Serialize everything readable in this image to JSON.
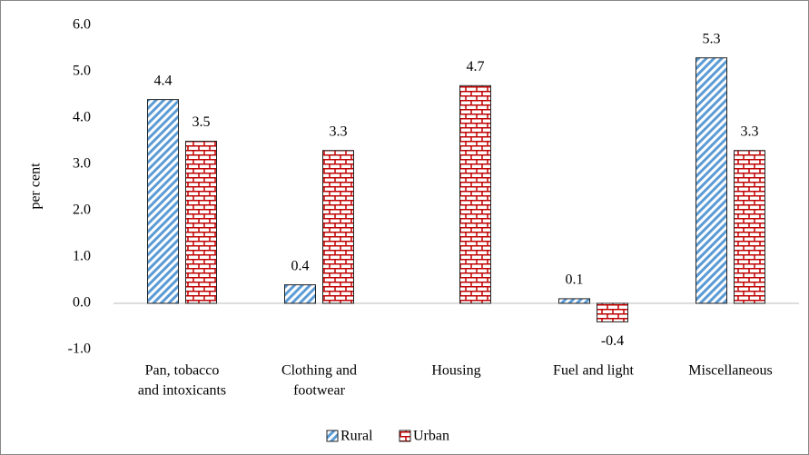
{
  "chart_data": {
    "type": "bar",
    "ylabel": "per cent",
    "categories": [
      [
        "Pan, tobacco",
        "and intoxicants"
      ],
      [
        "Clothing and",
        "footwear"
      ],
      [
        "Housing"
      ],
      [
        "Fuel and light"
      ],
      [
        "Miscellaneous"
      ]
    ],
    "series": [
      {
        "name": "Rural",
        "color": "#5b9bd5",
        "values": [
          4.4,
          0.4,
          null,
          0.1,
          5.3
        ]
      },
      {
        "name": "Urban",
        "color": "#c00000",
        "values": [
          3.5,
          3.3,
          4.7,
          -0.4,
          3.3
        ]
      }
    ],
    "ylim": [
      -1,
      6
    ],
    "yticks": [
      {
        "value": -1,
        "label": "-1.0"
      },
      {
        "value": 0,
        "label": "0.0"
      },
      {
        "value": 1,
        "label": "1.0"
      },
      {
        "value": 2,
        "label": "2.0"
      },
      {
        "value": 3,
        "label": "3.0"
      },
      {
        "value": 4,
        "label": "4.0"
      },
      {
        "value": 5,
        "label": "5.0"
      },
      {
        "value": 6,
        "label": "6.0"
      }
    ],
    "grid": false,
    "legend": "bottom"
  }
}
